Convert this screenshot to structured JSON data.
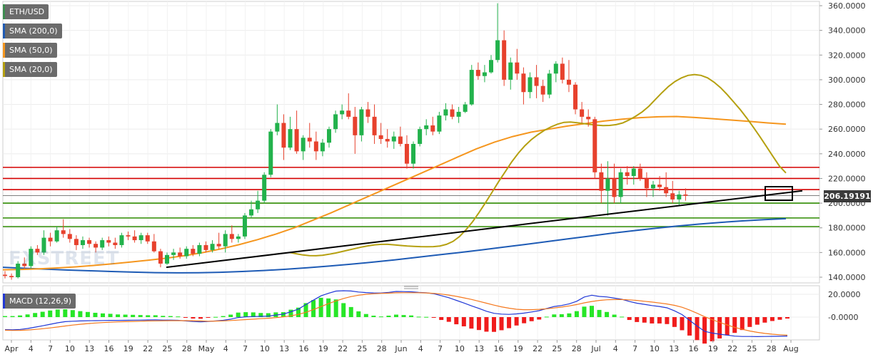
{
  "legend": {
    "pair": "ETH/USD",
    "sma200": "SMA (200,0)",
    "sma50": "SMA (50,0)",
    "sma20": "SMA (20,0)",
    "macd": "MACD (12,26,9)"
  },
  "watermark": "FXSTREET",
  "current_price_label": "206.19191",
  "colors": {
    "up": "#22b24c",
    "down": "#e7412d",
    "sma200": "#1e5bb5",
    "sma50": "#f5961e",
    "sma20": "#b5a010",
    "red_level": "#d40000",
    "green_level": "#2e8b00",
    "trendline": "#000000",
    "macd_line": "#2138d6",
    "signal_line": "#f5781e",
    "hist_up": "#27e627",
    "hist_down": "#f01c1c",
    "legend_pair": "#3d8c50",
    "legend_sma200": "#1e5bb5",
    "legend_sma50": "#f5961e",
    "legend_sma20": "#b5a010",
    "legend_macd": "#2138d6"
  },
  "chart_data": [
    {
      "type": "candlestick",
      "title": "ETH/USD",
      "ylim": [
        135,
        362
      ],
      "y_ticks": [
        "360.0000",
        "340.0000",
        "320.0000",
        "300.0000",
        "280.0000",
        "260.0000",
        "240.0000",
        "220.0000",
        "200.0000",
        "180.0000",
        "160.0000",
        "140.0000"
      ],
      "x_ticks": [
        "Apr",
        "4",
        "7",
        "10",
        "13",
        "16",
        "19",
        "22",
        "25",
        "28",
        "May",
        "4",
        "7",
        "10",
        "13",
        "16",
        "19",
        "22",
        "25",
        "28",
        "Jun",
        "4",
        "7",
        "10",
        "13",
        "16",
        "19",
        "22",
        "25",
        "28",
        "Jul",
        "4",
        "7",
        "10",
        "13",
        "16",
        "19",
        "22",
        "25",
        "28",
        "Aug"
      ],
      "candles": [
        [
          142,
          145,
          139,
          141
        ],
        [
          141,
          143,
          138,
          140
        ],
        [
          140,
          153,
          139,
          151
        ],
        [
          151,
          156,
          147,
          149
        ],
        [
          149,
          165,
          147,
          163
        ],
        [
          163,
          166,
          158,
          160
        ],
        [
          160,
          178,
          158,
          172
        ],
        [
          172,
          176,
          165,
          169
        ],
        [
          169,
          181,
          168,
          178
        ],
        [
          178,
          187,
          172,
          175
        ],
        [
          175,
          179,
          168,
          171
        ],
        [
          171,
          174,
          162,
          166
        ],
        [
          166,
          173,
          163,
          170
        ],
        [
          170,
          172,
          164,
          167
        ],
        [
          167,
          169,
          160,
          164
        ],
        [
          164,
          172,
          162,
          170
        ],
        [
          170,
          173,
          165,
          168
        ],
        [
          168,
          172,
          163,
          166
        ],
        [
          166,
          176,
          164,
          174
        ],
        [
          174,
          177,
          170,
          173
        ],
        [
          173,
          178,
          168,
          170
        ],
        [
          170,
          176,
          167,
          174
        ],
        [
          174,
          176,
          167,
          169
        ],
        [
          169,
          175,
          160,
          161
        ],
        [
          161,
          163,
          148,
          151
        ],
        [
          151,
          160,
          150,
          158
        ],
        [
          158,
          163,
          154,
          160
        ],
        [
          160,
          164,
          155,
          157
        ],
        [
          157,
          165,
          155,
          163
        ],
        [
          163,
          166,
          157,
          159
        ],
        [
          159,
          168,
          157,
          166
        ],
        [
          166,
          169,
          160,
          162
        ],
        [
          162,
          170,
          160,
          167
        ],
        [
          167,
          176,
          163,
          165
        ],
        [
          165,
          178,
          160,
          175
        ],
        [
          175,
          182,
          168,
          171
        ],
        [
          171,
          175,
          168,
          173
        ],
        [
          173,
          192,
          171,
          190
        ],
        [
          190,
          202,
          188,
          195
        ],
        [
          195,
          210,
          192,
          202
        ],
        [
          202,
          225,
          200,
          223
        ],
        [
          223,
          260,
          221,
          258
        ],
        [
          258,
          280,
          255,
          265
        ],
        [
          265,
          272,
          235,
          245
        ],
        [
          245,
          270,
          243,
          260
        ],
        [
          260,
          275,
          240,
          242
        ],
        [
          242,
          255,
          235,
          253
        ],
        [
          253,
          265,
          245,
          250
        ],
        [
          250,
          258,
          235,
          242
        ],
        [
          242,
          252,
          238,
          249
        ],
        [
          249,
          262,
          245,
          260
        ],
        [
          260,
          275,
          257,
          272
        ],
        [
          272,
          280,
          268,
          275
        ],
        [
          275,
          289,
          268,
          270
        ],
        [
          270,
          278,
          240,
          255
        ],
        [
          255,
          278,
          250,
          276
        ],
        [
          276,
          282,
          265,
          270
        ],
        [
          270,
          280,
          248,
          255
        ],
        [
          255,
          265,
          248,
          252
        ],
        [
          252,
          260,
          245,
          250
        ],
        [
          250,
          258,
          244,
          254
        ],
        [
          254,
          262,
          246,
          248
        ],
        [
          248,
          255,
          228,
          232
        ],
        [
          232,
          250,
          228,
          248
        ],
        [
          248,
          262,
          246,
          260
        ],
        [
          260,
          268,
          255,
          263
        ],
        [
          263,
          270,
          255,
          258
        ],
        [
          258,
          274,
          256,
          271
        ],
        [
          271,
          281,
          267,
          276
        ],
        [
          276,
          280,
          268,
          270
        ],
        [
          270,
          278,
          265,
          274
        ],
        [
          274,
          282,
          273,
          280
        ],
        [
          280,
          312,
          279,
          308
        ],
        [
          308,
          314,
          300,
          303
        ],
        [
          303,
          312,
          298,
          306
        ],
        [
          306,
          320,
          305,
          316
        ],
        [
          316,
          362,
          314,
          332
        ],
        [
          332,
          340,
          295,
          300
        ],
        [
          300,
          318,
          292,
          314
        ],
        [
          314,
          325,
          300,
          305
        ],
        [
          305,
          310,
          280,
          290
        ],
        [
          290,
          306,
          285,
          302
        ],
        [
          302,
          312,
          285,
          295
        ],
        [
          295,
          300,
          282,
          288
        ],
        [
          288,
          308,
          285,
          305
        ],
        [
          305,
          315,
          298,
          313
        ],
        [
          313,
          318,
          297,
          300
        ],
        [
          300,
          316,
          290,
          296
        ],
        [
          296,
          298,
          272,
          276
        ],
        [
          276,
          282,
          265,
          270
        ],
        [
          270,
          276,
          262,
          268
        ],
        [
          268,
          270,
          220,
          225
        ],
        [
          225,
          232,
          200,
          210
        ],
        [
          210,
          234,
          190,
          220
        ],
        [
          220,
          232,
          200,
          205
        ],
        [
          205,
          228,
          200,
          225
        ],
        [
          225,
          230,
          215,
          222
        ],
        [
          222,
          230,
          215,
          228
        ],
        [
          228,
          232,
          218,
          220
        ],
        [
          220,
          225,
          205,
          212
        ],
        [
          212,
          218,
          205,
          215
        ],
        [
          215,
          222,
          210,
          213
        ],
        [
          213,
          225,
          205,
          208
        ],
        [
          208,
          218,
          200,
          203
        ],
        [
          203,
          210,
          198,
          207
        ],
        [
          207,
          212,
          202,
          206
        ]
      ],
      "sma200": [
        148,
        147.2,
        146.5,
        145.8,
        145.2,
        144.6,
        144.1,
        143.7,
        143.5,
        143.6,
        144,
        144.6,
        145.4,
        146.4,
        147.6,
        149,
        150.5,
        152.2,
        154,
        156,
        158,
        160,
        162.1,
        164.3,
        166.5,
        168.8,
        171.1,
        173.4,
        175.6,
        177.7,
        179.6,
        181.4,
        183,
        184.4,
        185.6,
        186.6,
        187.4
      ],
      "sma50": [
        146,
        146.3,
        146.8,
        147.5,
        148.4,
        149.5,
        150.8,
        152.3,
        153.8,
        155.5,
        157.5,
        160,
        163,
        166.5,
        170.5,
        175,
        180,
        186,
        192,
        198.5,
        205,
        211.5,
        218,
        224.5,
        231,
        237.5,
        244,
        249.5,
        254,
        257.5,
        260,
        262.5,
        264.5,
        266.5,
        268,
        269.3,
        270,
        270.2,
        269.4,
        268.4,
        267.3,
        266.2,
        265,
        264
      ],
      "sma20": [
        160,
        159,
        158,
        157.5,
        157.4,
        157.8,
        158.6,
        159.6,
        160.8,
        162,
        163.2,
        164.4,
        165.4,
        166.2,
        166.6,
        166.6,
        166.2,
        165.7,
        165.3,
        165,
        164.8,
        164.7,
        164.8,
        165.3,
        166.6,
        169,
        173,
        178.5,
        185,
        192.5,
        200.5,
        209,
        217.5,
        225.5,
        233.5,
        240.5,
        246.5,
        251.5,
        255.5,
        259,
        261.8,
        264,
        265.5,
        265.7,
        265.2,
        264.5,
        263.8,
        263.2,
        262.9,
        263,
        263.6,
        265,
        267.5,
        270.5,
        274,
        278.5,
        284,
        289.5,
        294.5,
        298.5,
        301.5,
        303.5,
        304.2,
        303.5,
        301.5,
        298,
        293.5,
        288,
        282,
        275.8,
        269,
        261.6,
        254,
        246,
        238,
        230,
        224.5
      ]
    },
    {
      "type": "bar+line",
      "title": "MACD (12,26,9)",
      "ylim": [
        -18,
        25
      ],
      "y_ticks": [
        "20.0000",
        "-0.0000"
      ],
      "macd": [
        -11,
        -11.2,
        -10.8,
        -10,
        -8.8,
        -7.6,
        -6.3,
        -5,
        -4,
        -3.6,
        -3.4,
        -3.2,
        -3.1,
        -3,
        -2.9,
        -2.9,
        -2.8,
        -2.7,
        -2.6,
        -2.5,
        -2.4,
        -2.6,
        -2.6,
        -2.8,
        -3.4,
        -3.9,
        -4.2,
        -3.8,
        -3.4,
        -2.8,
        -1.8,
        -0.4,
        0.2,
        0.5,
        0.6,
        0.9,
        1.8,
        2.6,
        4.7,
        7,
        11,
        14.9,
        18.6,
        20.9,
        22.8,
        23.1,
        22.9,
        22,
        21.5,
        21.2,
        21.1,
        21.7,
        22.5,
        22.4,
        22.2,
        21.6,
        21.3,
        20.5,
        18.8,
        17,
        14.7,
        12.4,
        9.9,
        7.6,
        5.1,
        3.3,
        2.6,
        2.4,
        2.8,
        3.5,
        4.5,
        5.6,
        7.5,
        9.3,
        10.2,
        11.6,
        13.9,
        17.6,
        19.2,
        18.1,
        17.7,
        16.6,
        15.6,
        13.7,
        12.2,
        11.2,
        10.1,
        9.3,
        8.1,
        5.5,
        2.2,
        -2.8,
        -7.8,
        -12.5,
        -14,
        -15,
        -15.8,
        -16.7,
        -17,
        -17,
        -17.1,
        -17,
        -16.9,
        -16.8,
        -16.6
      ],
      "signal": [
        -11.5,
        -11.7,
        -11.6,
        -11.3,
        -10.8,
        -10.2,
        -9.5,
        -8.7,
        -7.8,
        -7,
        -6.3,
        -5.7,
        -5.2,
        -4.8,
        -4.5,
        -4.2,
        -4,
        -3.8,
        -3.6,
        -3.4,
        -3.3,
        -3.2,
        -3.1,
        -3.1,
        -3.1,
        -3.2,
        -3.4,
        -3.6,
        -3.5,
        -3.3,
        -3,
        -2.6,
        -2.2,
        -1.8,
        -1.4,
        -1,
        -0.5,
        0.2,
        1.1,
        2.4,
        4.2,
        6.6,
        9.2,
        11.8,
        14.2,
        16.3,
        18,
        19.2,
        20,
        20.5,
        20.8,
        21,
        21.3,
        21.4,
        21.4,
        21.4,
        21.2,
        20.8,
        20.2,
        19.3,
        18.2,
        16.9,
        15.5,
        13.9,
        12.2,
        10.5,
        9,
        7.8,
        6.9,
        6.5,
        6.5,
        6.8,
        7.3,
        8,
        8.8,
        9.8,
        11,
        12.5,
        13.7,
        14.6,
        15.2,
        15.4,
        15.4,
        15.1,
        14.6,
        13.9,
        13.2,
        12.4,
        11.5,
        10.3,
        8.6,
        6.2,
        3.4,
        0.4,
        -2.2,
        -4.6,
        -6.9,
        -9,
        -10.7,
        -12.2,
        -13.4,
        -14.3,
        -15,
        -15.5,
        -15.9
      ]
    }
  ]
}
